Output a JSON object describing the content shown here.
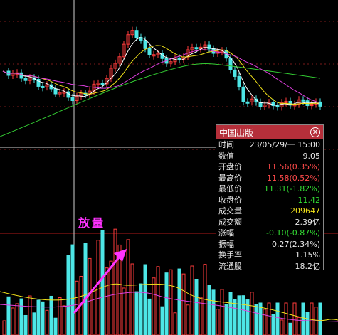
{
  "annotation": "放量",
  "colors": {
    "up": "#ff3b3b",
    "down": "#4de6e6",
    "ma5": "#ffffff",
    "ma10": "#f2e31a",
    "ma20": "#e040e0",
    "ma60": "#33cc33",
    "arrow": "#ff33ff",
    "divider": "#b01a1a"
  },
  "info_panel": {
    "title": "中国出版",
    "close_icon": "close-icon",
    "rows": [
      {
        "label": "时间",
        "value": "23/05/29/一 15:00",
        "tone": "white"
      },
      {
        "label": "数值",
        "value": "9.05",
        "tone": "white"
      },
      {
        "label": "开盘价",
        "value": "11.56(0.35%)",
        "tone": "red"
      },
      {
        "label": "最高价",
        "value": "11.58(0.52%)",
        "tone": "red"
      },
      {
        "label": "最低价",
        "value": "11.31(-1.82%)",
        "tone": "green"
      },
      {
        "label": "收盘价",
        "value": "11.42",
        "tone": "green"
      },
      {
        "label": "成交量",
        "value": "209647",
        "tone": "yellow"
      },
      {
        "label": "成交额",
        "value": "2.39亿",
        "tone": "white"
      },
      {
        "label": "涨幅",
        "value": "-0.10(-0.87%)",
        "tone": "green"
      },
      {
        "label": "振幅",
        "value": "0.27(2.34%)",
        "tone": "white"
      },
      {
        "label": "换手率",
        "value": "1.15%",
        "tone": "white"
      },
      {
        "label": "流通股",
        "value": "18.2亿",
        "tone": "white"
      }
    ]
  }
}
